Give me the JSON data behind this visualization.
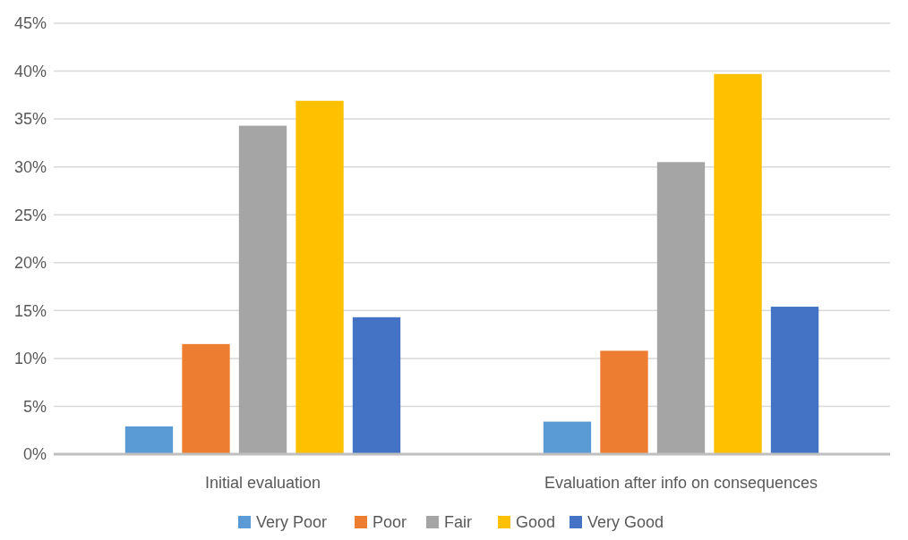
{
  "chart_data": {
    "type": "bar",
    "categories": [
      "Initial evaluation",
      "Evaluation after info on consequences"
    ],
    "series": [
      {
        "name": "Very Poor",
        "color": "#5b9bd5",
        "values": [
          2.9,
          3.4
        ]
      },
      {
        "name": "Poor",
        "color": "#ed7d31",
        "values": [
          11.5,
          10.8
        ]
      },
      {
        "name": "Fair",
        "color": "#a5a5a5",
        "values": [
          34.3,
          30.5
        ]
      },
      {
        "name": "Good",
        "color": "#ffc000",
        "values": [
          36.9,
          39.7
        ]
      },
      {
        "name": "Very Good",
        "color": "#4472c4",
        "values": [
          14.3,
          15.4
        ]
      }
    ],
    "ylim": [
      0,
      45
    ],
    "yticks": [
      {
        "value": 0,
        "label": "0%"
      },
      {
        "value": 5,
        "label": "5%"
      },
      {
        "value": 10,
        "label": "10%"
      },
      {
        "value": 15,
        "label": "15%"
      },
      {
        "value": 20,
        "label": "20%"
      },
      {
        "value": 25,
        "label": "25%"
      },
      {
        "value": 30,
        "label": "30%"
      },
      {
        "value": 35,
        "label": "35%"
      },
      {
        "value": 40,
        "label": "40%"
      },
      {
        "value": 45,
        "label": "45%"
      }
    ],
    "grid": "y",
    "legend": "bottom"
  }
}
